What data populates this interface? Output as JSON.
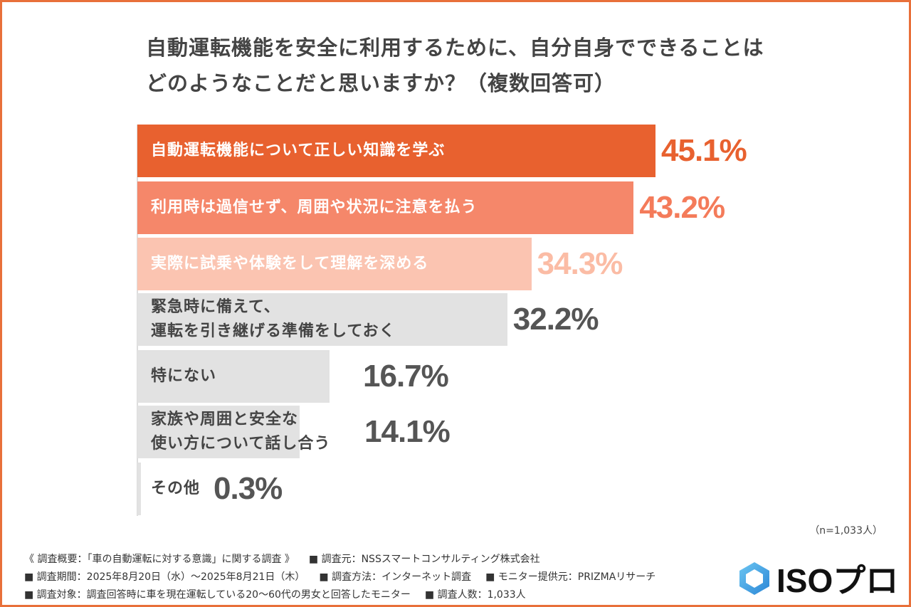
{
  "chart_data": {
    "type": "bar",
    "orientation": "horizontal",
    "title": "自動運転機能を安全に利用するために、自分自身でできることは\nどのようなことだと思いますか？（複数回答可）",
    "categories": [
      "自動運転機能について正しい知識を学ぶ",
      "利用時は過信せず、周囲や状況に注意を払う",
      "実際に試乗や体験をして理解を深める",
      "緊急時に備えて、\n運転を引き継げる準備をしておく",
      "特にない",
      "家族や周囲と安全な\n使い方について話し合う",
      "その他"
    ],
    "values": [
      45.1,
      43.2,
      34.3,
      32.2,
      16.7,
      14.1,
      0.3
    ],
    "value_labels": [
      "45.1%",
      "43.2%",
      "34.3%",
      "32.2%",
      "16.7%",
      "14.1%",
      "0.3%"
    ],
    "bar_colors": [
      "#e8612f",
      "#f5876a",
      "#fbc4b1",
      "#e2e2e2",
      "#e2e2e2",
      "#e2e2e2",
      "#e2e2e2"
    ],
    "label_colors": [
      "#ffffff",
      "#ffffff",
      "#ffffff",
      "#444444",
      "#444444",
      "#444444",
      "#444444"
    ],
    "value_colors": [
      "#e8612f",
      "#f47b5a",
      "#fbbca5",
      "#555555",
      "#555555",
      "#555555",
      "#555555"
    ],
    "xlim": [
      0,
      50
    ],
    "unit": "%",
    "grid": false
  },
  "sample_note": "（n=1,033人）",
  "footer": [
    [
      "《 調査概要：「車の自動運転に対する意識」に関する調査 》",
      "■ 調査元：NSSスマートコンサルティング株式会社"
    ],
    [
      "■ 調査期間：2025年8月20日（水）～2025年8月21日（木）",
      "■ 調査方法：インターネット調査",
      "■ モニター提供元：PRIZMAリサーチ"
    ],
    [
      "■ 調査対象：調査回答時に車を現在運転している20～60代の男女と回答したモニター",
      "■ 調査人数：1,033人"
    ]
  ],
  "logo": {
    "text": "ISOプロ",
    "color": "#3aa0e0"
  }
}
